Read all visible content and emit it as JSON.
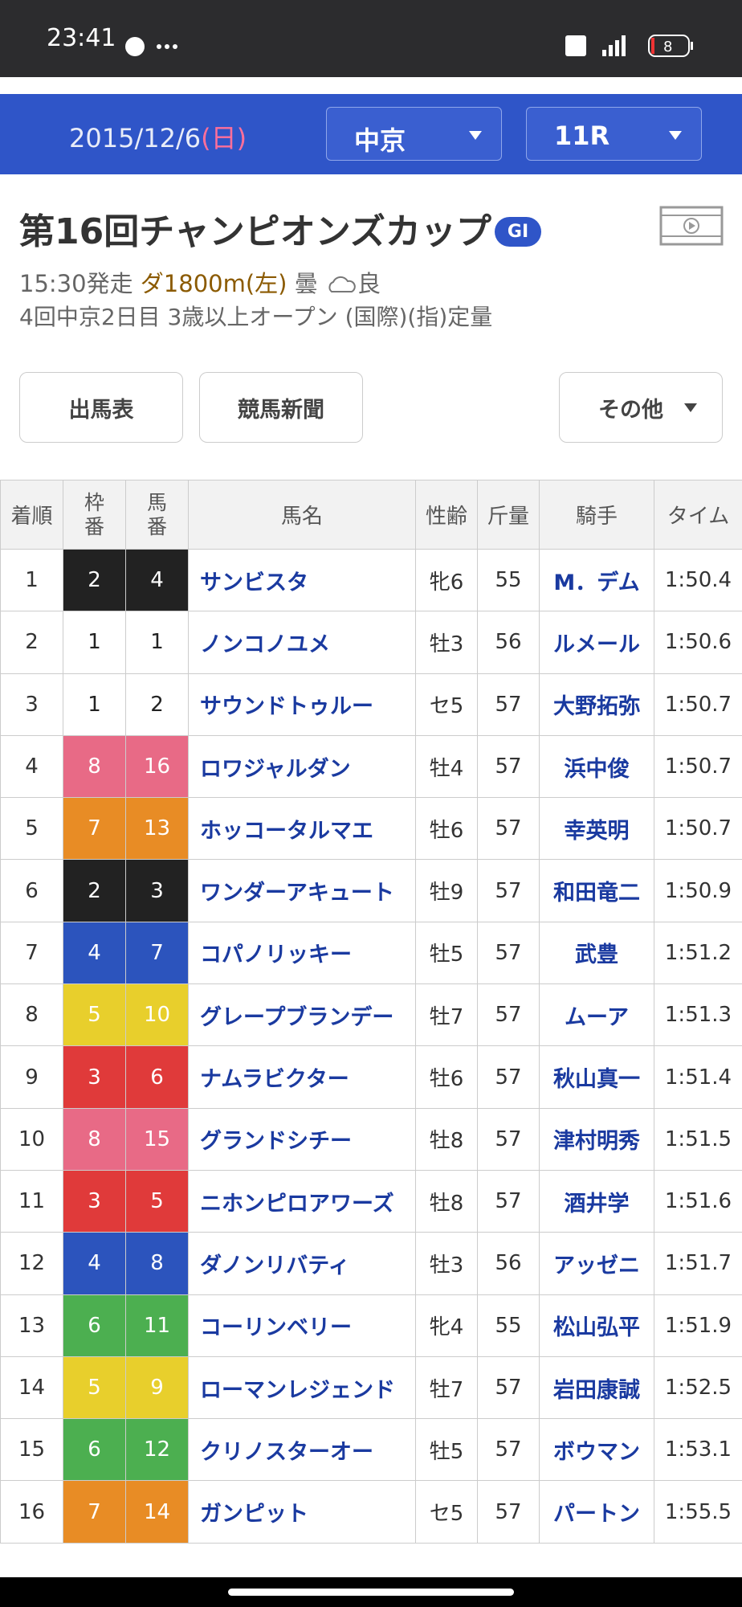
{
  "status_bar": {
    "time": "23:41",
    "battery": "8"
  },
  "header": {
    "date": "2015/12/6",
    "weekday": "(日)",
    "venue": "中京",
    "race": "11R"
  },
  "race": {
    "title": "第16回チャンピオンズカップ",
    "grade": "GI",
    "start": "15:30発走",
    "course": "ダ1800m(左)",
    "weather": "曇",
    "going": "良",
    "conditions": "4回中京2日目 3歳以上オープン (国際)(指)定量"
  },
  "buttons": [
    "出馬表",
    "競馬新聞",
    "その他"
  ],
  "table": {
    "columns": [
      "着順",
      "枠番",
      "馬番",
      "馬名",
      "性齢",
      "斤量",
      "騎手",
      "タイム"
    ],
    "rows": [
      [
        "1",
        "2",
        "4",
        "サンビスタ",
        "牝6",
        "55",
        "M．デム",
        "1:50.4"
      ],
      [
        "2",
        "1",
        "1",
        "ノンコノユメ",
        "牡3",
        "56",
        "ルメール",
        "1:50.6"
      ],
      [
        "3",
        "1",
        "2",
        "サウンドトゥルー",
        "セ5",
        "57",
        "大野拓弥",
        "1:50.7"
      ],
      [
        "4",
        "8",
        "16",
        "ロワジャルダン",
        "牡4",
        "57",
        "浜中俊",
        "1:50.7"
      ],
      [
        "5",
        "7",
        "13",
        "ホッコータルマエ",
        "牡6",
        "57",
        "幸英明",
        "1:50.7"
      ],
      [
        "6",
        "2",
        "3",
        "ワンダーアキュート",
        "牡9",
        "57",
        "和田竜二",
        "1:50.9"
      ],
      [
        "7",
        "4",
        "7",
        "コパノリッキー",
        "牡5",
        "57",
        "武豊",
        "1:51.2"
      ],
      [
        "8",
        "5",
        "10",
        "グレープブランデー",
        "牡7",
        "57",
        "ムーア",
        "1:51.3"
      ],
      [
        "9",
        "3",
        "6",
        "ナムラビクター",
        "牡6",
        "57",
        "秋山真一",
        "1:51.4"
      ],
      [
        "10",
        "8",
        "15",
        "グランドシチー",
        "牡8",
        "57",
        "津村明秀",
        "1:51.5"
      ],
      [
        "11",
        "3",
        "5",
        "ニホンピロアワーズ",
        "牡8",
        "57",
        "酒井学",
        "1:51.6"
      ],
      [
        "12",
        "4",
        "8",
        "ダノンリバティ",
        "牡3",
        "56",
        "アッゼニ",
        "1:51.7"
      ],
      [
        "13",
        "6",
        "11",
        "コーリンベリー",
        "牝4",
        "55",
        "松山弘平",
        "1:51.9"
      ],
      [
        "14",
        "5",
        "9",
        "ローマンレジェンド",
        "牡7",
        "57",
        "岩田康誠",
        "1:52.5"
      ],
      [
        "15",
        "6",
        "12",
        "クリノスターオー",
        "牡5",
        "57",
        "ボウマン",
        "1:53.1"
      ],
      [
        "16",
        "7",
        "14",
        "ガンピット",
        "セ5",
        "57",
        "パートン",
        "1:55.5"
      ]
    ]
  }
}
